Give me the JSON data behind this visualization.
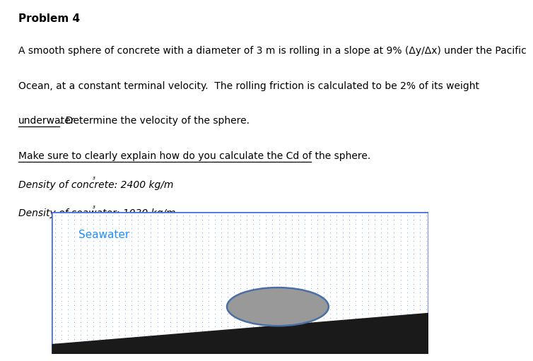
{
  "title": "Problem 4",
  "line1": "A smooth sphere of concrete with a diameter of 3 m is rolling in a slope at 9% (Δy/Δx) under the Pacific",
  "line2": "Ocean, at a constant terminal velocity.  The rolling friction is calculated to be 2% of its weight",
  "line3_underline": "underwater",
  "line3_rest": ". Determine the velocity of the sphere.",
  "line4": "Make sure to clearly explain how do you calculate the Cd of the sphere.",
  "line5_main": "Density of concrete: 2400 kg/m",
  "line5_sup": "³",
  "line6_main": "Density of seawater: 1030 kg/m",
  "line6_sup": "³",
  "seawater_label": "Seawater",
  "seawater_label_color": "#1E90FF",
  "box_border_color": "#4169E1",
  "water_dot_color": "#6EB5FF",
  "sphere_fill_color": "#999999",
  "sphere_edge_color": "#4A6FA5",
  "slope_color": "#1a1a1a",
  "bg_color": "#ffffff",
  "text_color": "#000000",
  "fig_width": 6.34,
  "fig_height": 5.02
}
